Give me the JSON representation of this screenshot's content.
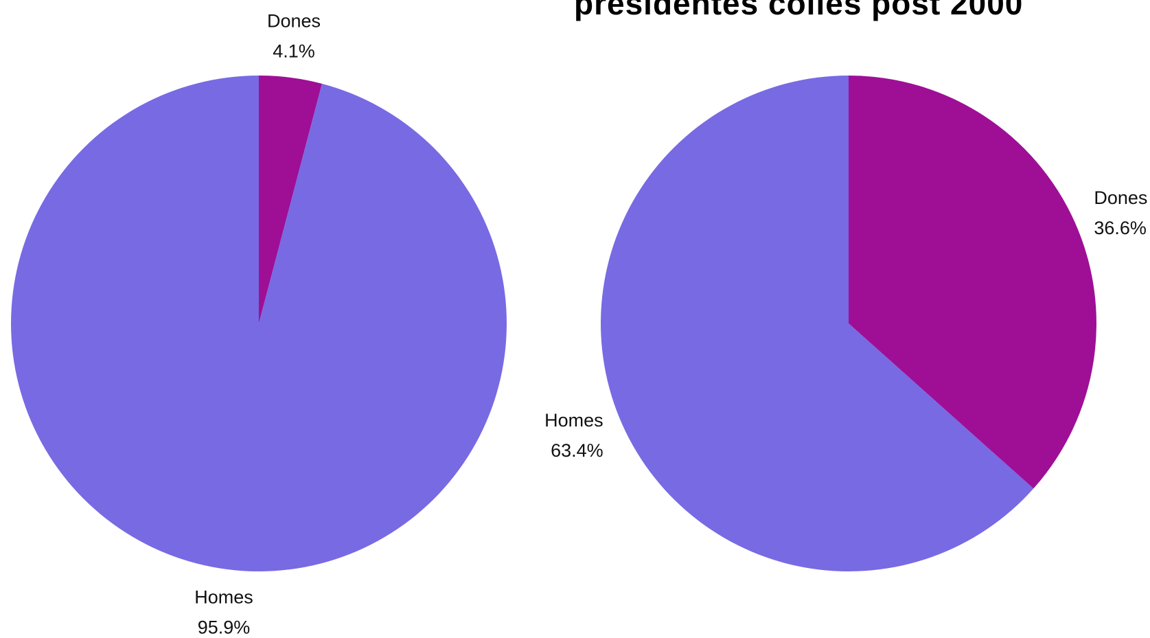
{
  "title": "presidentes colles post 2000",
  "colors": {
    "Dones": "#9e0f96",
    "Homes": "#786ae3"
  },
  "chart_data": [
    {
      "type": "pie",
      "slices": [
        {
          "label": "Dones",
          "value": 4.1,
          "value_label": "4.1%"
        },
        {
          "label": "Homes",
          "value": 95.9,
          "value_label": "95.9%"
        }
      ]
    },
    {
      "type": "pie",
      "title": "presidentes colles post 2000",
      "slices": [
        {
          "label": "Dones",
          "value": 36.6,
          "value_label": "36.6%"
        },
        {
          "label": "Homes",
          "value": 63.4,
          "value_label": "63.4%"
        }
      ]
    }
  ]
}
